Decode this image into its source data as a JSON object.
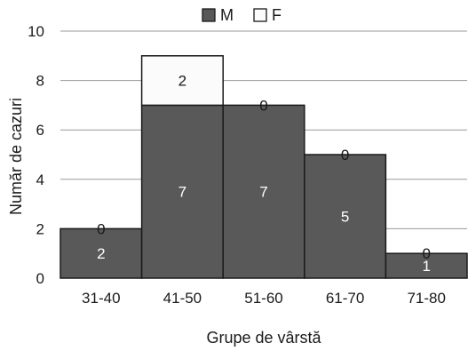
{
  "chart_data": {
    "type": "bar",
    "stacked": true,
    "categories": [
      "31-40",
      "41-50",
      "51-60",
      "61-70",
      "71-80"
    ],
    "series": [
      {
        "name": "M",
        "values": [
          2,
          7,
          7,
          5,
          1
        ],
        "color": "#595959"
      },
      {
        "name": "F",
        "values": [
          0,
          2,
          0,
          0,
          0
        ],
        "color": "#fbfbfb"
      }
    ],
    "xlabel": "Grupe de vârstă",
    "ylabel": "Număr de cazuri",
    "ylim": [
      0,
      10
    ],
    "yticks": [
      0,
      2,
      4,
      6,
      8,
      10
    ],
    "grid": true,
    "legend_position": "top",
    "colors": {
      "bar_stroke": "#1a1a1a",
      "grid": "#9a9a9a",
      "label_on_dark": "#ffffff",
      "label_on_light": "#1a1a1a"
    }
  }
}
